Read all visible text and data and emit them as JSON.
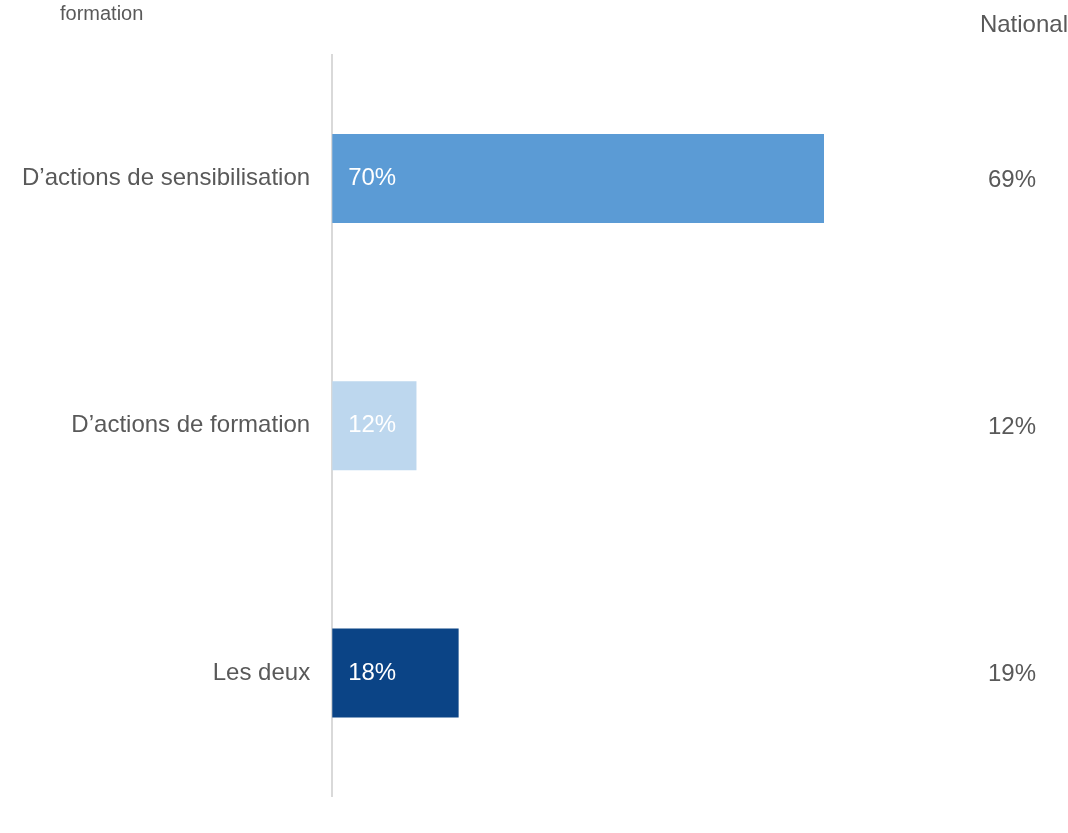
{
  "chart_data": {
    "type": "bar",
    "orientation": "horizontal",
    "title": "formation",
    "categories": [
      "D’actions de sensibilisation",
      "D’actions de formation",
      "Les deux"
    ],
    "values": [
      70,
      12,
      18
    ],
    "colors": [
      "#5b9bd5",
      "#bdd7ee",
      "#0b4486"
    ],
    "value_labels": [
      "70%",
      "12%",
      "18%"
    ],
    "annotations": [
      "National",
      "69%",
      "12%",
      "19%"
    ]
  }
}
